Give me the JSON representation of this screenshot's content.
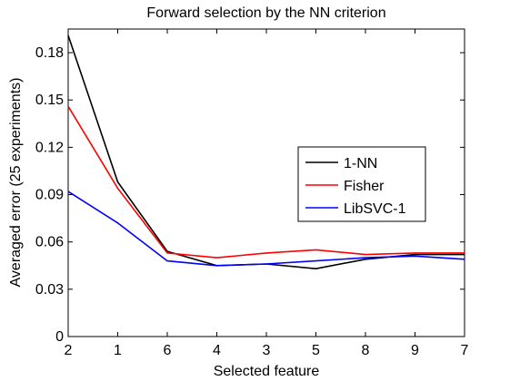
{
  "chart_data": {
    "type": "line",
    "title": "Forward selection by the NN criterion",
    "xlabel": "Selected feature",
    "ylabel": "Averaged error (25 experiments)",
    "categories": [
      "2",
      "1",
      "6",
      "4",
      "3",
      "5",
      "8",
      "9",
      "7"
    ],
    "ylim": [
      0,
      0.195
    ],
    "yticks": [
      "0",
      "0.03",
      "0.06",
      "0.09",
      "0.12",
      "0.15",
      "0.18"
    ],
    "ytick_values": [
      0,
      0.03,
      0.06,
      0.09,
      0.12,
      0.15,
      0.18
    ],
    "grid": false,
    "legend_position": "right",
    "series": [
      {
        "name": "1-NN",
        "color": "#000000",
        "values": [
          0.191,
          0.098,
          0.054,
          0.045,
          0.046,
          0.043,
          0.049,
          0.052,
          0.052
        ]
      },
      {
        "name": "Fisher",
        "color": "#ff0000",
        "values": [
          0.146,
          0.094,
          0.053,
          0.05,
          0.053,
          0.055,
          0.052,
          0.053,
          0.053
        ]
      },
      {
        "name": "LibSVC-1",
        "color": "#0000ff",
        "values": [
          0.092,
          0.072,
          0.048,
          0.045,
          0.046,
          0.048,
          0.05,
          0.051,
          0.049
        ]
      }
    ]
  }
}
